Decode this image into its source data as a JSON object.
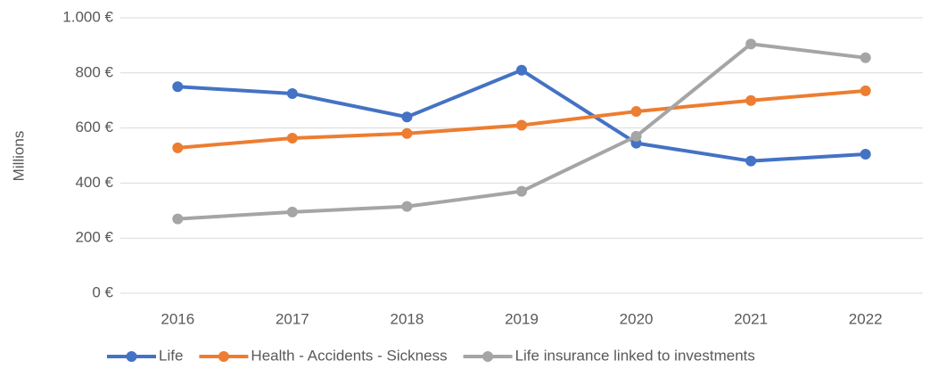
{
  "chart_data": {
    "type": "line",
    "y_label": "Millions",
    "categories": [
      "2016",
      "2017",
      "2018",
      "2019",
      "2020",
      "2021",
      "2022"
    ],
    "series": [
      {
        "name": "Life",
        "color": "#4472c4",
        "values": [
          750,
          725,
          640,
          810,
          545,
          480,
          505
        ]
      },
      {
        "name": "Health - Accidents - Sickness",
        "color": "#ed7d31",
        "values": [
          528,
          563,
          580,
          610,
          660,
          700,
          735
        ]
      },
      {
        "name": "Life insurance linked to investments",
        "color": "#a5a5a5",
        "values": [
          270,
          295,
          315,
          370,
          570,
          905,
          855
        ]
      }
    ],
    "ylim": [
      0,
      1000
    ],
    "yticks": [
      {
        "value": 0,
        "label": "0 €"
      },
      {
        "value": 200,
        "label": "200 €"
      },
      {
        "value": 400,
        "label": "400 €"
      },
      {
        "value": 600,
        "label": "600 €"
      },
      {
        "value": 800,
        "label": "800 €"
      },
      {
        "value": 1000,
        "label": "1.000 €"
      }
    ],
    "grid": true,
    "legend": "bottom"
  }
}
